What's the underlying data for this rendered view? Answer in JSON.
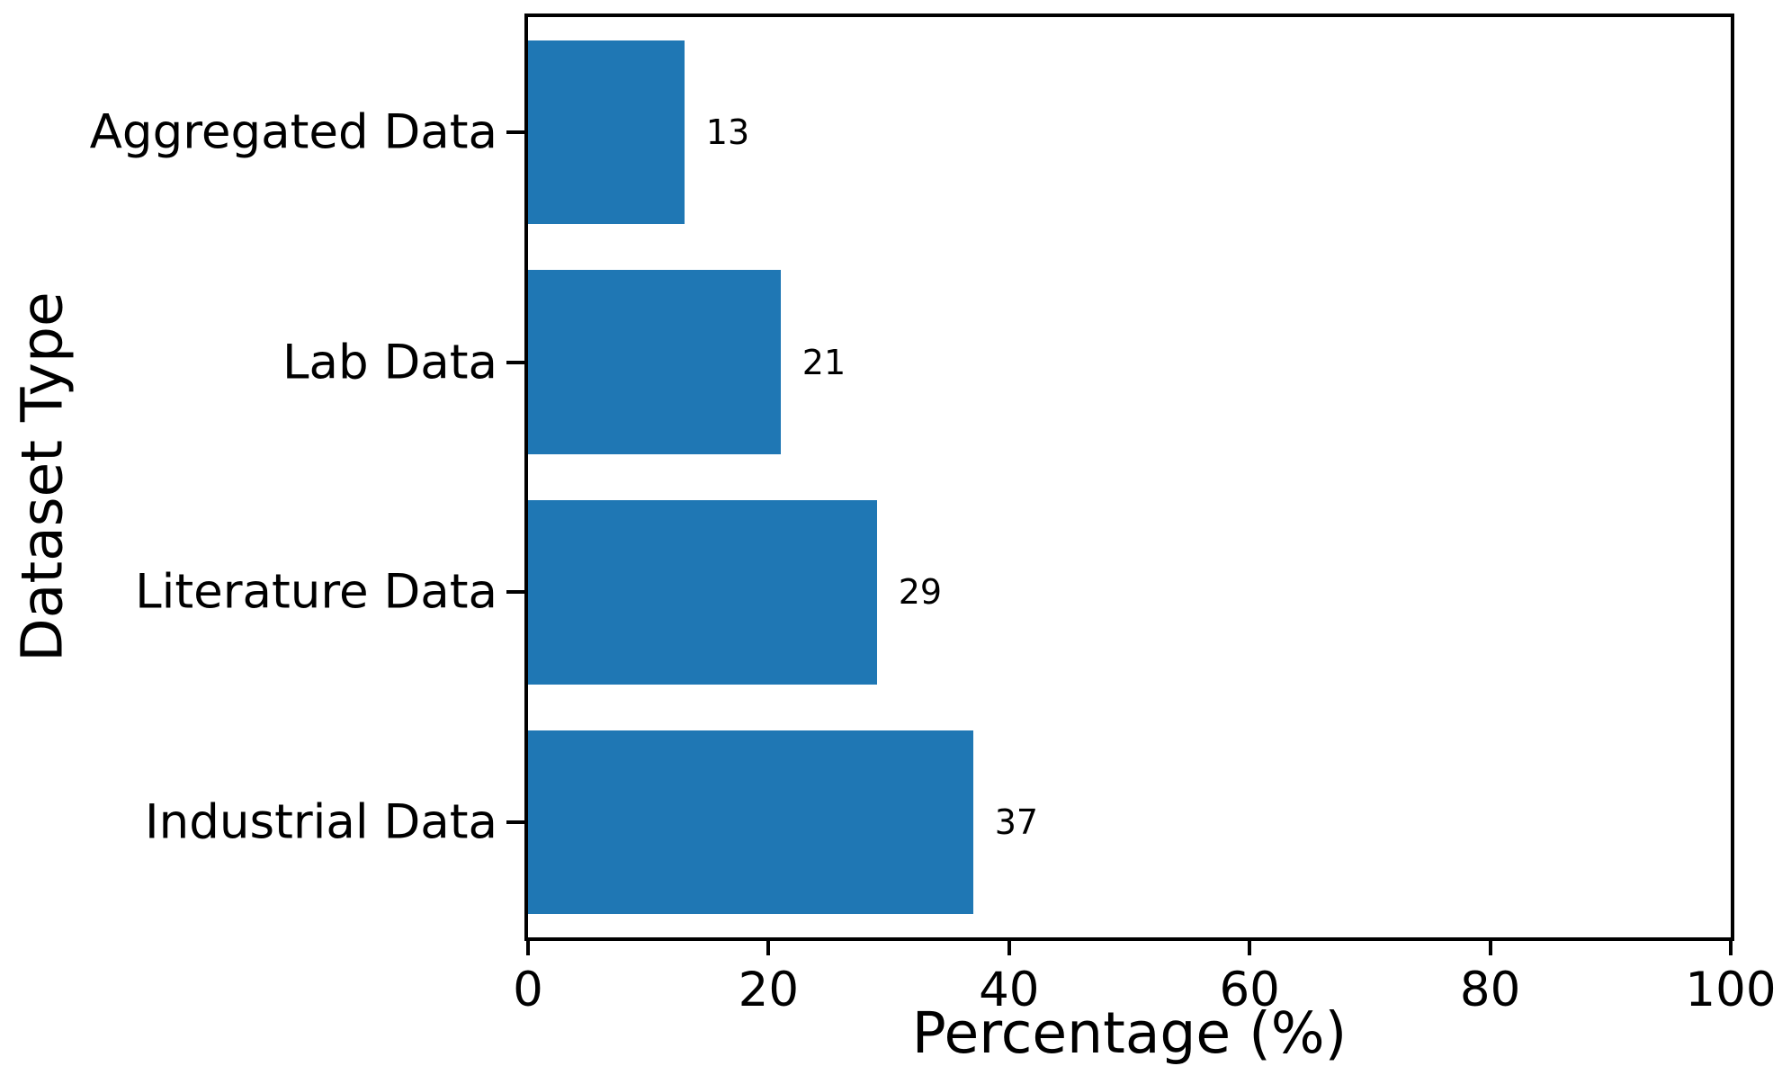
{
  "chart_data": {
    "type": "bar",
    "orientation": "horizontal",
    "title": "",
    "xlabel": "Percentage (%)",
    "ylabel": "Dataset Type",
    "categories": [
      "Aggregated Data",
      "Lab Data",
      "Literature Data",
      "Industrial Data"
    ],
    "values": [
      13,
      21,
      29,
      37
    ],
    "value_labels": [
      "13",
      "21",
      "29",
      "37"
    ],
    "xlim": [
      0,
      100
    ],
    "x_ticks": [
      0,
      20,
      40,
      60,
      80,
      100
    ],
    "x_tick_labels": [
      "0",
      "20",
      "40",
      "60",
      "80",
      "100"
    ],
    "bar_height_fraction": 0.8,
    "bar_color": "#1f77b4",
    "axis_color": "#000000",
    "background_color": "#ffffff",
    "grid": false,
    "legend": false
  }
}
